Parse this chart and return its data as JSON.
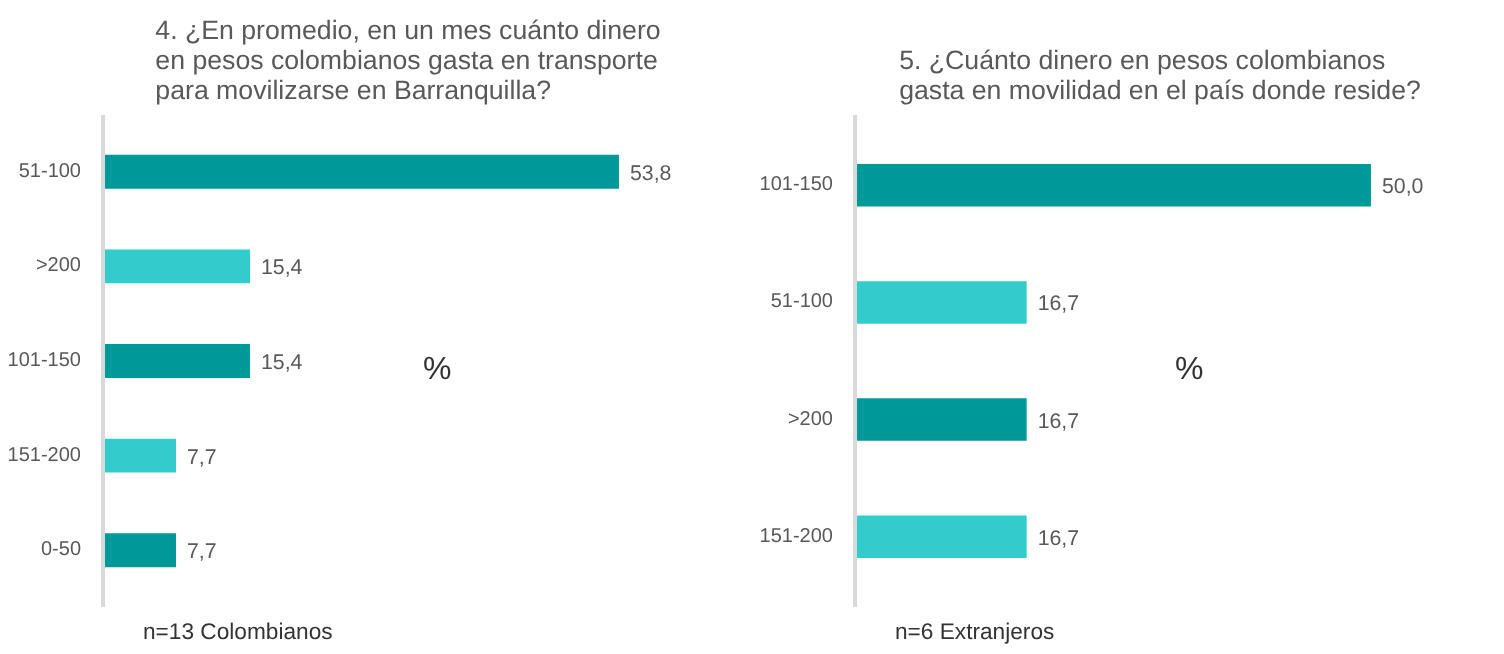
{
  "chart_data": [
    {
      "type": "bar",
      "orientation": "horizontal",
      "title": "4. ¿En promedio, en un mes cuánto dinero\nen pesos colombianos gasta en transporte\npara movilizarse en Barranquilla?",
      "categories": [
        "51-100",
        ">200",
        "101-150",
        "151-200",
        "0-50"
      ],
      "values": [
        53.8,
        15.4,
        15.4,
        7.7,
        7.7
      ],
      "colors": [
        "#009999",
        "#33cccc",
        "#009999",
        "#33cccc",
        "#009999"
      ],
      "value_labels": [
        "53,8",
        "15,4",
        "15,4",
        "7,7",
        "7,7"
      ],
      "annotations": [
        "%",
        "n=13  Colombianos"
      ],
      "grid": false
    },
    {
      "type": "bar",
      "orientation": "horizontal",
      "title": "5. ¿Cuánto dinero en pesos colombianos\ngasta en movilidad en el país donde reside?",
      "categories": [
        "101-150",
        "51-100",
        ">200",
        "151-200"
      ],
      "values": [
        50.0,
        16.7,
        16.7,
        16.7
      ],
      "colors": [
        "#009999",
        "#33cccc",
        "#009999",
        "#33cccc"
      ],
      "value_labels": [
        "50,0",
        "16,7",
        "16,7",
        "16,7"
      ],
      "annotations": [
        "%",
        "n=6 Extranjeros"
      ],
      "grid": false
    }
  ]
}
